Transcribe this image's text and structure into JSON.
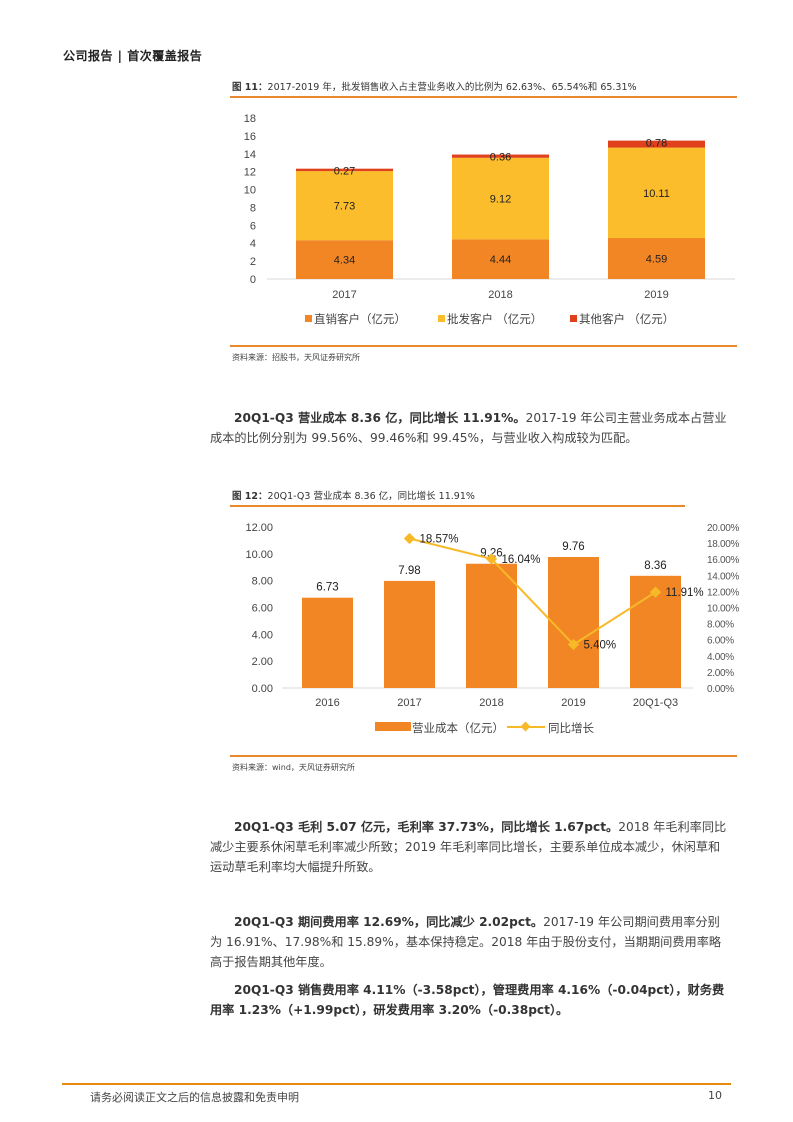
{
  "header": {
    "title": "公司报告 | 首次覆盖报告"
  },
  "figure11": {
    "title_prefix": "图 11：",
    "title_text": "2017-2019 年，批发销售收入占主营业务收入的比例为 62.63%、65.54%和 65.31%",
    "source": "资料来源：招股书，天风证券研究所",
    "legend": [
      "直销客户（亿元）",
      "批发客户 （亿元）",
      "其他客户 （亿元）"
    ]
  },
  "figure12": {
    "title_prefix": "图 12：",
    "title_text": "20Q1-Q3 营业成本 8.36 亿，同比增长 11.91%",
    "source": "资料来源：wind，天风证券研究所",
    "legend": [
      "营业成本（亿元）",
      "同比增长"
    ]
  },
  "paragraphs": [
    {
      "lead": "20Q1-Q3 营业成本 8.36 亿，同比增长 11.91%。",
      "body": "2017-19 年公司主营业务成本占营业成本的比例分别为 99.56%、99.46%和 99.45%，与营业收入构成较为匹配。"
    },
    {
      "lead": "20Q1-Q3 毛利 5.07 亿元，毛利率 37.73%，同比增长 1.67pct。",
      "body": "2018 年毛利率同比减少主要系休闲草毛利率减少所致；2019 年毛利率同比增长，主要系单位成本减少，休闲草和运动草毛利率均大幅提升所致。"
    },
    {
      "lead": "20Q1-Q3 期间费用率 12.69%，同比减少 2.02pct。",
      "body": "2017-19 年公司期间费用率分别为 16.91%、17.98%和 15.89%，基本保持稳定。2018 年由于股份支付，当期期间费用率略高于报告期其他年度。"
    },
    {
      "lead": "20Q1-Q3 销售费用率 4.11%（-3.58pct），管理费用率 4.16%（-0.04pct），财务费用率 1.23%（+1.99pct），研发费用率 3.20%（-0.38pct）。",
      "body": ""
    }
  ],
  "footer": {
    "disclaimer": "请务必阅读正文之后的信息披露和免责申明",
    "page": "10"
  },
  "colors": {
    "accent": "#e8892e",
    "direct": "#f28524",
    "wholesale": "#fbbd2b",
    "other": "#e0401c",
    "line": "#f7b928"
  },
  "chart_data": [
    {
      "type": "bar",
      "stacked": true,
      "title": "图 11：2017-2019 年，批发销售收入占主营业务收入的比例为 62.63%、65.54%和 65.31%",
      "categories": [
        "2017",
        "2018",
        "2019"
      ],
      "series": [
        {
          "name": "直销客户（亿元）",
          "values": [
            4.34,
            4.44,
            4.59
          ],
          "color": "#f28524"
        },
        {
          "name": "批发客户 （亿元）",
          "values": [
            7.73,
            9.12,
            10.11
          ],
          "color": "#fbbd2b"
        },
        {
          "name": "其他客户 （亿元）",
          "values": [
            0.27,
            0.36,
            0.78
          ],
          "color": "#e0401c"
        }
      ],
      "xlabel": "",
      "ylabel": "",
      "ylim": [
        0,
        18
      ],
      "yticks": [
        0,
        2,
        4,
        6,
        8,
        10,
        12,
        14,
        16,
        18
      ],
      "grid": false,
      "legend_position": "bottom"
    },
    {
      "type": "bar+line",
      "title": "图 12：20Q1-Q3 营业成本 8.36 亿，同比增长 11.91%",
      "categories": [
        "2016",
        "2017",
        "2018",
        "2019",
        "20Q1-Q3"
      ],
      "series": [
        {
          "name": "营业成本（亿元）",
          "type": "bar",
          "axis": "left",
          "values": [
            6.73,
            7.98,
            9.26,
            9.76,
            8.36
          ],
          "color": "#f28524"
        },
        {
          "name": "同比增长",
          "type": "line",
          "axis": "right",
          "values": [
            null,
            18.57,
            16.04,
            5.4,
            11.91
          ],
          "labels": [
            "",
            "18.57%",
            "16.04%",
            "5.40%",
            "11.91%"
          ],
          "color": "#f7b928"
        }
      ],
      "ylim_left": [
        0,
        12
      ],
      "yticks_left": [
        "0.00",
        "2.00",
        "4.00",
        "6.00",
        "8.00",
        "10.00",
        "12.00"
      ],
      "ylim_right": [
        0,
        20
      ],
      "yticks_right": [
        "0.00%",
        "2.00%",
        "4.00%",
        "6.00%",
        "8.00%",
        "10.00%",
        "12.00%",
        "14.00%",
        "16.00%",
        "18.00%",
        "20.00%"
      ],
      "grid": false,
      "legend_position": "bottom"
    }
  ]
}
